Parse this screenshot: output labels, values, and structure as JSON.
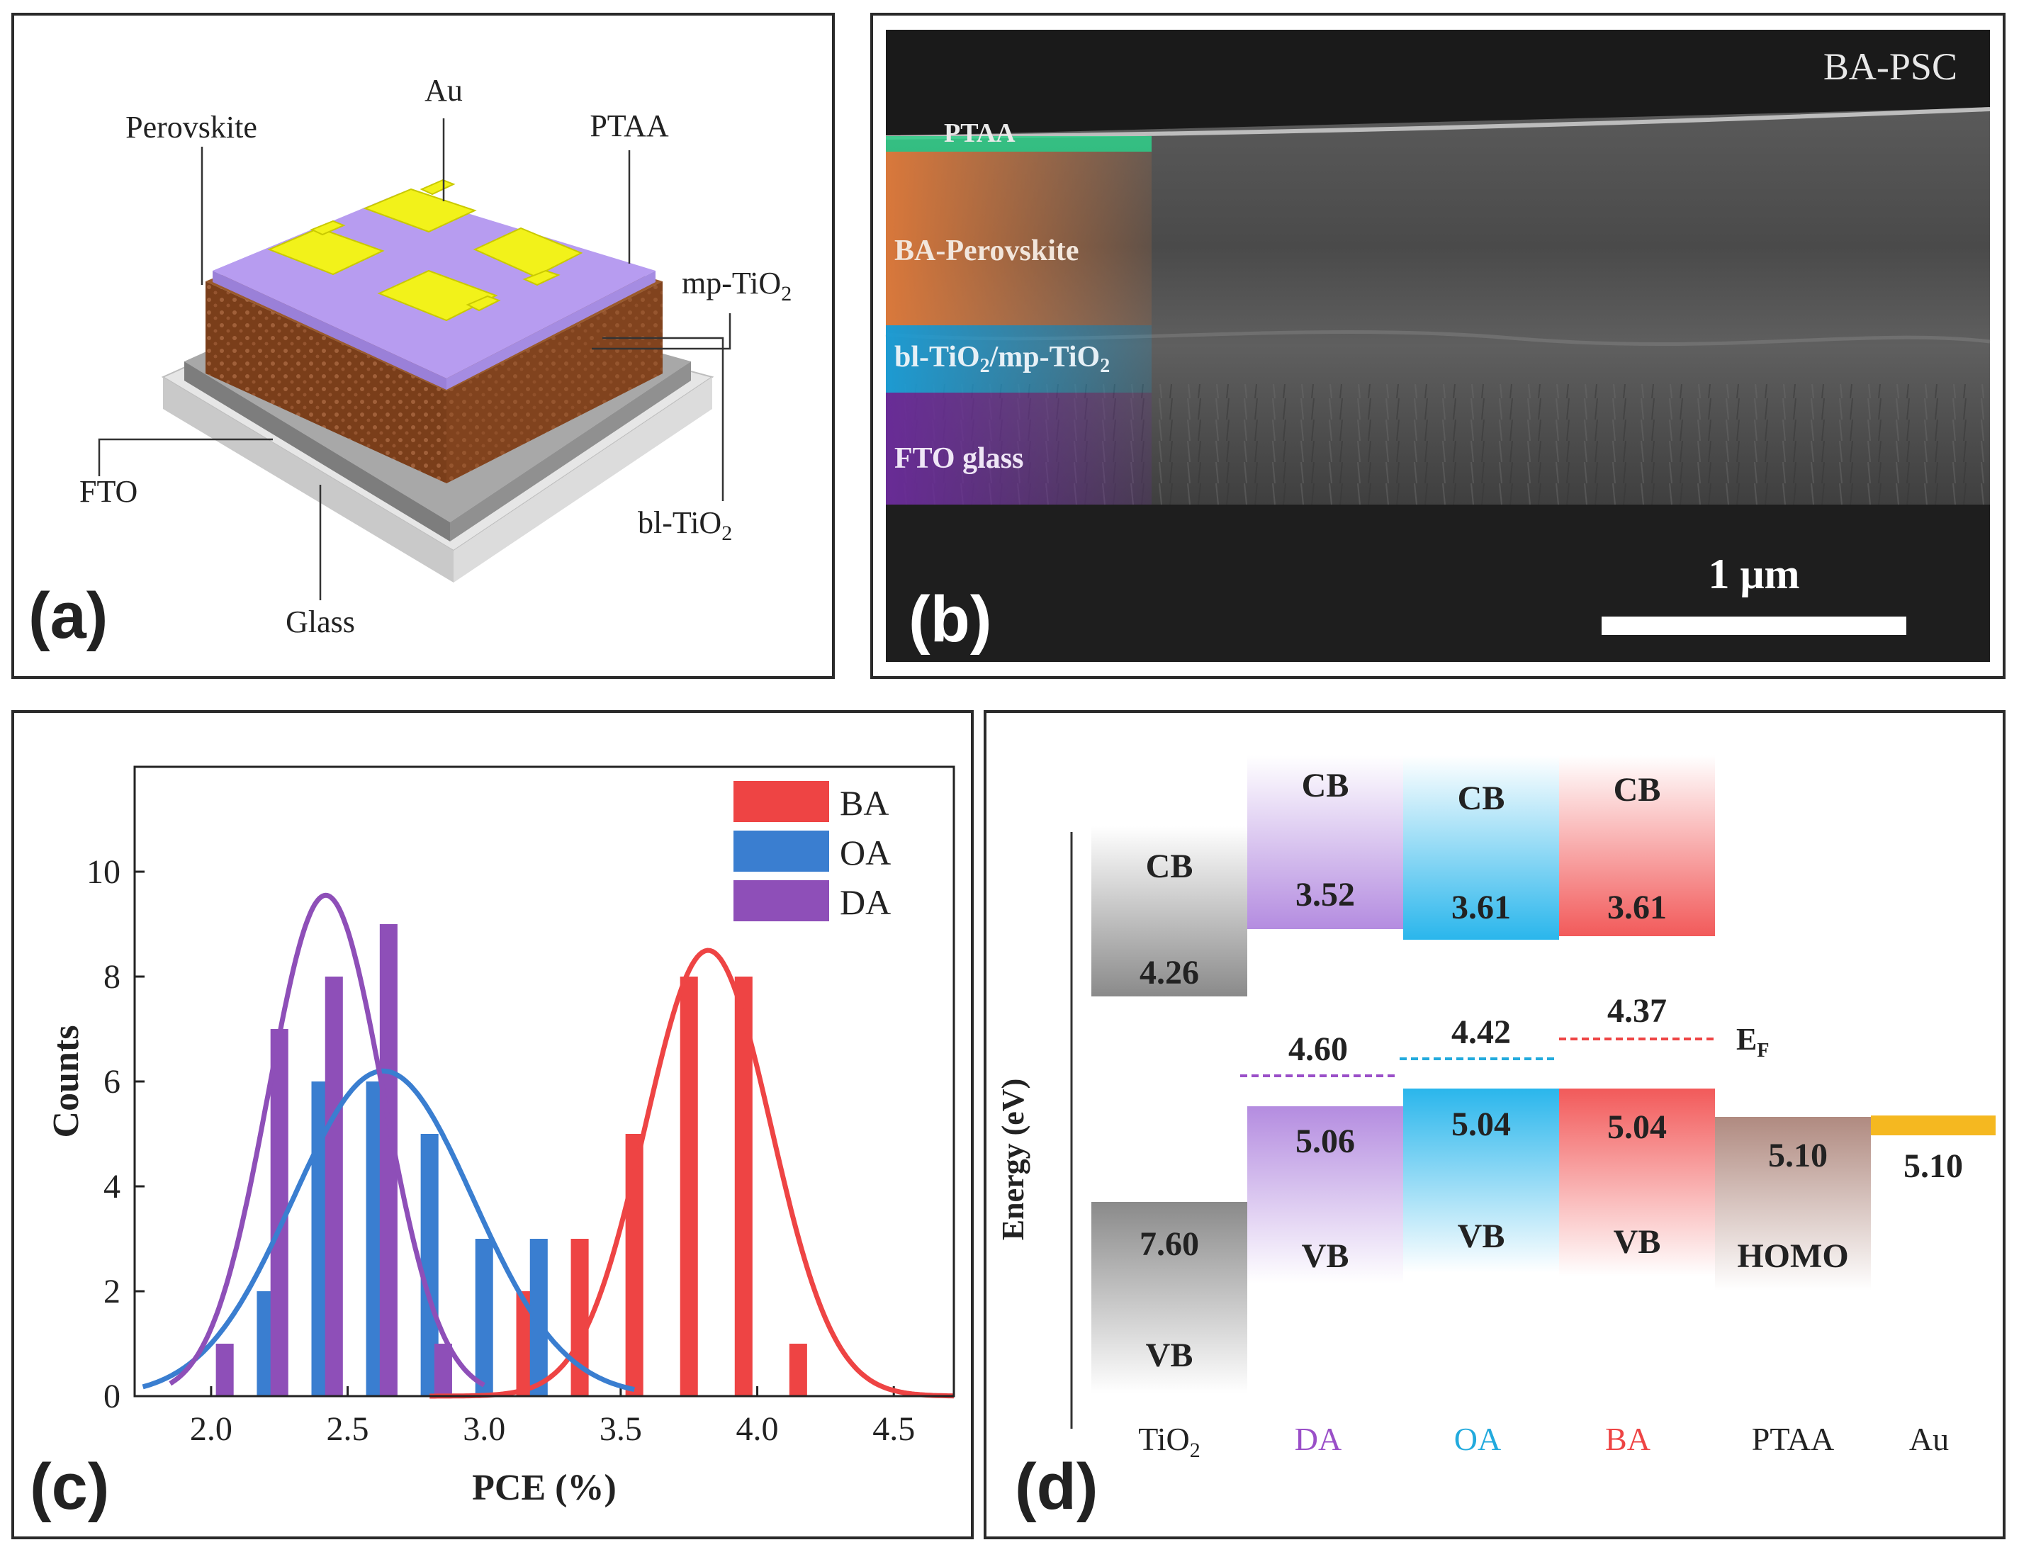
{
  "panel_a": {
    "label": "(a)",
    "layers": {
      "au": "Au",
      "perovskite": "Perovskite",
      "ptaa": "PTAA",
      "mp_tio2": "mp-TiO",
      "mp_tio2_sub": "2",
      "fto": "FTO",
      "bl_tio2": "bl-TiO",
      "bl_tio2_sub": "2",
      "glass": "Glass"
    },
    "colors": {
      "au": "#f2f21a",
      "ptaa": "#b79cf0",
      "perovskite": "#8a4a22",
      "fto": "#9a9a9a",
      "glass": "#e8e8e8"
    }
  },
  "panel_b": {
    "label": "(b)",
    "title": "BA-PSC",
    "layers": {
      "ptaa": "PTAA",
      "perovskite": "BA-Perovskite",
      "tio2_a": "bl-TiO",
      "tio2_sub1": "2",
      "tio2_b": "/mp-TiO",
      "tio2_sub2": "2",
      "fto": "FTO glass"
    },
    "scale_bar": "1 μm"
  },
  "panel_c": {
    "label": "(c)",
    "chart_data": {
      "type": "bar",
      "xlabel": "PCE (%)",
      "ylabel": "Counts",
      "xlim": [
        1.72,
        4.72
      ],
      "ylim": [
        0,
        12
      ],
      "x_ticks": [
        "2.0",
        "2.5",
        "3.0",
        "3.5",
        "4.0",
        "4.5"
      ],
      "x_tick_values": [
        2.0,
        2.5,
        3.0,
        3.5,
        4.0,
        4.5
      ],
      "y_ticks": [
        "0",
        "2",
        "4",
        "6",
        "8",
        "10"
      ],
      "y_tick_values": [
        0,
        2,
        4,
        6,
        8,
        10
      ],
      "legend": {
        "position": "top-right"
      },
      "series": [
        {
          "name": "BA",
          "color": "#ee4444",
          "bars": [
            {
              "x": 3.15,
              "y": 2
            },
            {
              "x": 3.35,
              "y": 3
            },
            {
              "x": 3.55,
              "y": 5
            },
            {
              "x": 3.75,
              "y": 8
            },
            {
              "x": 3.95,
              "y": 8
            },
            {
              "x": 4.15,
              "y": 1
            }
          ],
          "fit": {
            "mu": 3.82,
            "sigma": 0.23,
            "amp": 8.5,
            "from": 2.8,
            "to": 4.72
          }
        },
        {
          "name": "OA",
          "color": "#3a7ed0",
          "bars": [
            {
              "x": 2.2,
              "y": 2
            },
            {
              "x": 2.4,
              "y": 6
            },
            {
              "x": 2.6,
              "y": 6
            },
            {
              "x": 2.8,
              "y": 5
            },
            {
              "x": 3.0,
              "y": 3
            },
            {
              "x": 3.2,
              "y": 3
            }
          ],
          "fit": {
            "mu": 2.63,
            "sigma": 0.33,
            "amp": 6.2,
            "from": 1.75,
            "to": 3.55
          }
        },
        {
          "name": "DA",
          "color": "#8e4fb8",
          "bars": [
            {
              "x": 2.05,
              "y": 1
            },
            {
              "x": 2.25,
              "y": 7
            },
            {
              "x": 2.45,
              "y": 8
            },
            {
              "x": 2.65,
              "y": 9
            },
            {
              "x": 2.85,
              "y": 1
            }
          ],
          "fit": {
            "mu": 2.42,
            "sigma": 0.21,
            "amp": 9.55,
            "from": 1.85,
            "to": 3.0
          }
        }
      ]
    }
  },
  "panel_d": {
    "label": "(d)",
    "ylabel": "Energy (eV)",
    "ef_label": "E",
    "ef_sub": "F",
    "materials": [
      {
        "name": "TiO",
        "name_sub": "2",
        "name_color": "#222222",
        "cb_label": "CB",
        "cb_value": "4.26",
        "vb_value": "7.60",
        "vb_label": "VB"
      },
      {
        "name": "DA",
        "name_sub": "",
        "name_color": "#9a4fc8",
        "cb_label": "CB",
        "cb_value": "3.52",
        "vb_value": "5.06",
        "vb_label": "VB",
        "ef_value": "4.60",
        "ef_color": "#9a4fc8"
      },
      {
        "name": "OA",
        "name_sub": "",
        "name_color": "#22aadd",
        "cb_label": "CB",
        "cb_value": "3.61",
        "vb_value": "5.04",
        "vb_label": "VB",
        "ef_value": "4.42",
        "ef_color": "#22aadd"
      },
      {
        "name": "BA",
        "name_sub": "",
        "name_color": "#ee4444",
        "cb_label": "CB",
        "cb_value": "3.61",
        "vb_value": "5.04",
        "vb_label": "VB",
        "ef_value": "4.37",
        "ef_color": "#ee4444"
      },
      {
        "name": "PTAA",
        "name_sub": "",
        "name_color": "#222222",
        "vb_value": "5.10",
        "vb_label": "HOMO"
      },
      {
        "name": "Au",
        "name_sub": "",
        "name_color": "#222222",
        "vb_value": "5.10"
      }
    ]
  }
}
